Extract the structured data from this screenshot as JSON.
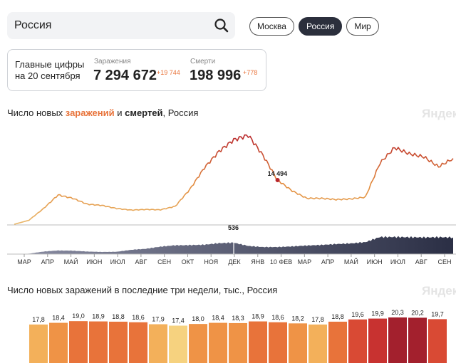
{
  "search": {
    "value": "Россия"
  },
  "region_tabs": [
    "Москва",
    "Россия",
    "Мир"
  ],
  "active_tab": "Россия",
  "summary": {
    "label_line1": "Главные цифры",
    "label_line2": "на 20 сентября",
    "cases_label": "Заражения",
    "cases_value": "7 294 672",
    "cases_delta": "+19 744",
    "deaths_label": "Смерти",
    "deaths_value": "198 996",
    "deaths_delta": "+778"
  },
  "chart1_title": {
    "prefix": "Число новых ",
    "cases": "заражений",
    "mid": " и ",
    "deaths": "смертей",
    "suffix": ", Россия"
  },
  "watermark": "Яндекс",
  "chart2_title": "Число новых заражений в последние три недели, тыс., Россия",
  "colors": {
    "accent_orange": "#e8733a",
    "dark_navy": "#2b2f3c",
    "deaths_fill": "#4a4e6b"
  },
  "chart_data": [
    {
      "type": "line",
      "series": [
        {
          "name": "заражения",
          "values": [
            200,
            1500,
            5300,
            9700,
            8600,
            6700,
            6300,
            5300,
            4800,
            5000,
            4900,
            6000,
            11500,
            18500,
            23800,
            27500,
            29000,
            22500,
            14494,
            11000,
            8600,
            8600,
            8200,
            8400,
            9000,
            20000,
            25000,
            23000,
            22000,
            18800,
            21500
          ]
        },
        {
          "name": "смерти",
          "values": [
            0,
            20,
            120,
            170,
            160,
            120,
            100,
            110,
            200,
            250,
            350,
            410,
            420,
            440,
            510,
            536,
            380,
            330,
            330,
            360,
            400,
            430,
            470,
            500,
            560,
            800,
            800,
            790,
            780,
            790,
            780
          ]
        }
      ],
      "annotations": [
        {
          "label": "14 494",
          "series": "заражения"
        },
        {
          "label": "536",
          "series": "смерти"
        }
      ],
      "x_ticks": [
        "МАР",
        "АПР",
        "МАЙ",
        "ИЮН",
        "ИЮЛ",
        "АВГ",
        "СЕН",
        "ОКТ",
        "НОЯ",
        "ДЕК",
        "ЯНВ",
        "10 ФЕВ",
        "МАР",
        "АПР",
        "МАЙ",
        "ИЮН",
        "ИЮЛ",
        "АВГ",
        "СЕН"
      ]
    },
    {
      "type": "bar",
      "title": "Число новых заражений в последние три недели, тыс., Россия",
      "values": [
        17.8,
        18.4,
        19.0,
        18.9,
        18.8,
        18.6,
        17.9,
        17.4,
        18.0,
        18.4,
        18.3,
        18.9,
        18.6,
        18.2,
        17.8,
        18.8,
        19.6,
        19.9,
        20.3,
        20.2,
        19.7
      ],
      "labels": [
        "17,8",
        "18,4",
        "19,0",
        "18,9",
        "18,8",
        "18,6",
        "17,9",
        "17,4",
        "18,0",
        "18,4",
        "18,3",
        "18,9",
        "18,6",
        "18,2",
        "17,8",
        "18,8",
        "19,6",
        "19,9",
        "20,3",
        "20,2",
        "19,7"
      ]
    }
  ]
}
